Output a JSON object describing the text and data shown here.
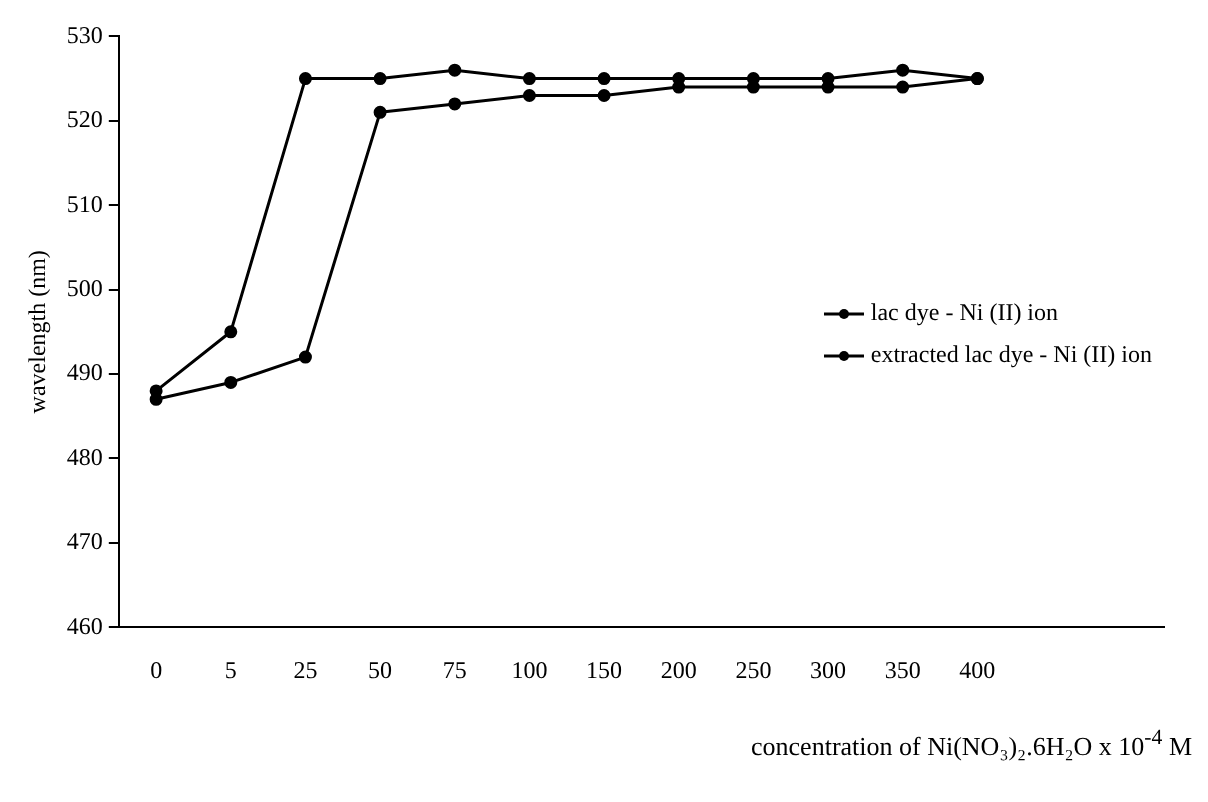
{
  "chart_data": {
    "type": "line",
    "xlabel": "concentration of Ni(NO₃)₂.6H₂O x 10$^{-4}$ M",
    "ylabel": "wavelength (nm)",
    "categories": [
      "0",
      "5",
      "25",
      "50",
      "75",
      "100",
      "150",
      "200",
      "250",
      "300",
      "350",
      "400",
      null,
      null
    ],
    "series": [
      {
        "name": "lac dye - Ni (II) ion",
        "color": "#000000",
        "values": [
          487,
          489,
          492,
          521,
          522,
          523,
          523,
          524,
          524,
          524,
          524,
          525,
          null,
          null
        ]
      },
      {
        "name": "extracted lac dye - Ni (II) ion",
        "color": "#000000",
        "values": [
          488,
          495,
          525,
          525,
          526,
          525,
          525,
          525,
          525,
          525,
          526,
          525,
          null,
          null
        ]
      }
    ],
    "ylim": [
      460,
      530
    ],
    "yticks": [
      460,
      470,
      480,
      490,
      500,
      510,
      520,
      530
    ],
    "grid": false,
    "legend": "right",
    "marker": "circle",
    "line_style": "solid"
  }
}
